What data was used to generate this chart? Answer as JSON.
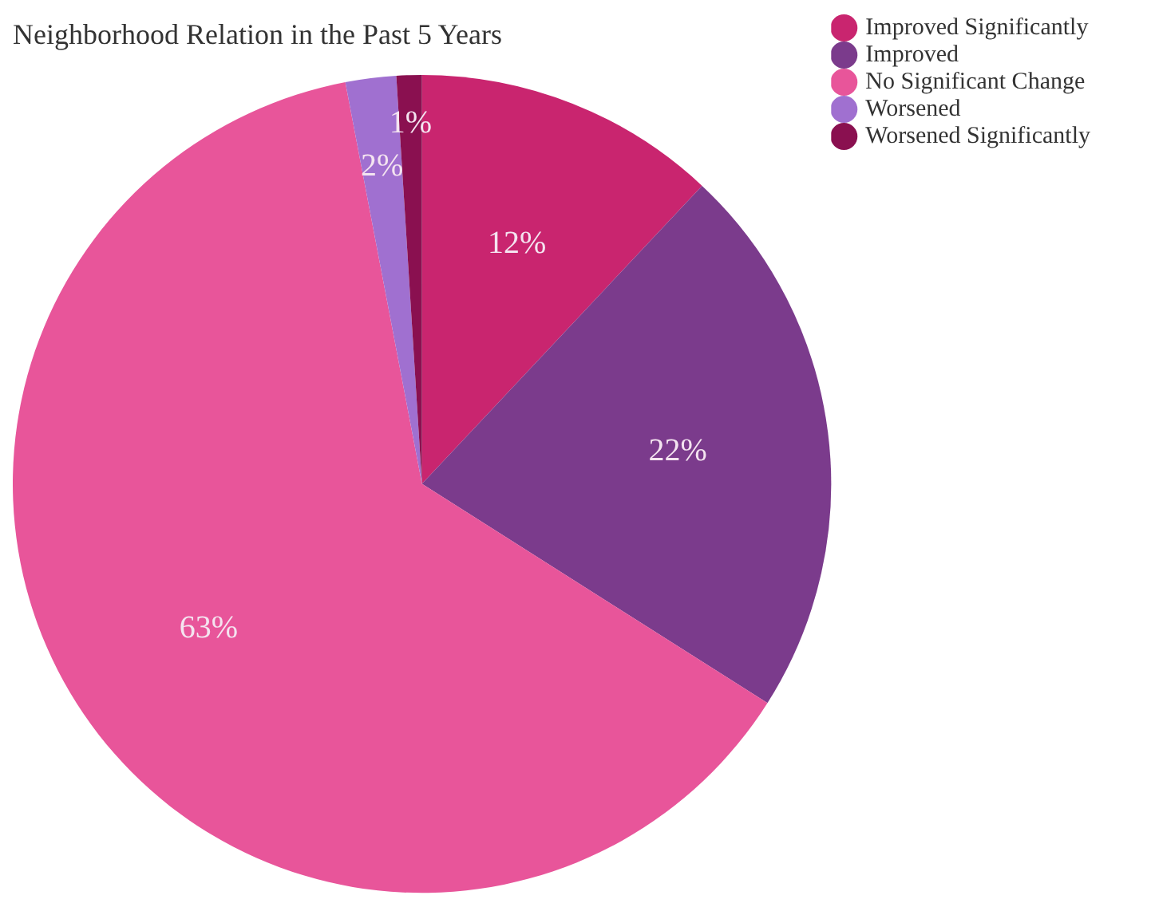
{
  "chart_data": {
    "type": "pie",
    "title": "Neighborhood Relation in the Past 5 Years",
    "categories": [
      "Improved Significantly",
      "Improved",
      "No Significant Change",
      "Worsened",
      "Worsened Significantly"
    ],
    "values": [
      12,
      22,
      63,
      2,
      1
    ],
    "value_labels": [
      "12%",
      "22%",
      "63%",
      "2%",
      "1%"
    ],
    "colors": [
      "#c9256f",
      "#7b3b8c",
      "#e8559a",
      "#a070d0",
      "#8a1050"
    ],
    "legend": "top right"
  }
}
